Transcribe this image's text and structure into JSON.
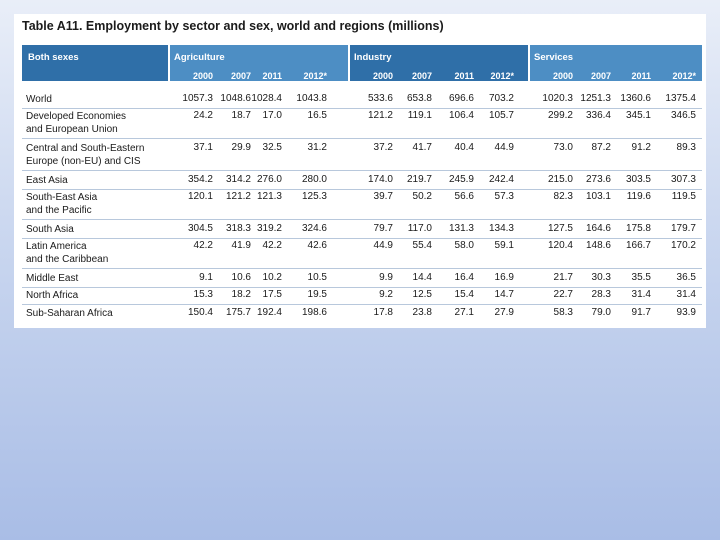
{
  "title": "Table A11.  Employment by sector and sex, world and regions (millions)",
  "header": {
    "row_label": "Both sexes",
    "sectors": [
      "Agriculture",
      "Industry",
      "Services"
    ],
    "years": [
      "2000",
      "2007",
      "2011",
      "2012*"
    ]
  },
  "rows": [
    {
      "label": [
        "World"
      ],
      "values": [
        "1057.3",
        "1048.6",
        "1028.4",
        "1043.8",
        "533.6",
        "653.8",
        "696.6",
        "703.2",
        "1020.3",
        "1251.3",
        "1360.6",
        "1375.4"
      ]
    },
    {
      "label": [
        "Developed Economies",
        "and European Union"
      ],
      "values": [
        "24.2",
        "18.7",
        "17.0",
        "16.5",
        "121.2",
        "119.1",
        "106.4",
        "105.7",
        "299.2",
        "336.4",
        "345.1",
        "346.5"
      ]
    },
    {
      "label": [
        "Central and South-Eastern",
        "Europe (non-EU) and CIS"
      ],
      "values": [
        "37.1",
        "29.9",
        "32.5",
        "31.2",
        "37.2",
        "41.7",
        "40.4",
        "44.9",
        "73.0",
        "87.2",
        "91.2",
        "89.3"
      ]
    },
    {
      "label": [
        "East Asia"
      ],
      "values": [
        "354.2",
        "314.2",
        "276.0",
        "280.0",
        "174.0",
        "219.7",
        "245.9",
        "242.4",
        "215.0",
        "273.6",
        "303.5",
        "307.3"
      ]
    },
    {
      "label": [
        "South-East Asia",
        "and the Pacific"
      ],
      "values": [
        "120.1",
        "121.2",
        "121.3",
        "125.3",
        "39.7",
        "50.2",
        "56.6",
        "57.3",
        "82.3",
        "103.1",
        "119.6",
        "119.5"
      ]
    },
    {
      "label": [
        "South Asia"
      ],
      "values": [
        "304.5",
        "318.3",
        "319.2",
        "324.6",
        "79.7",
        "117.0",
        "131.3",
        "134.3",
        "127.5",
        "164.6",
        "175.8",
        "179.7"
      ]
    },
    {
      "label": [
        "Latin America",
        "and the Caribbean"
      ],
      "values": [
        "42.2",
        "41.9",
        "42.2",
        "42.6",
        "44.9",
        "55.4",
        "58.0",
        "59.1",
        "120.4",
        "148.6",
        "166.7",
        "170.2"
      ]
    },
    {
      "label": [
        "Middle East"
      ],
      "values": [
        "9.1",
        "10.6",
        "10.2",
        "10.5",
        "9.9",
        "14.4",
        "16.4",
        "16.9",
        "21.7",
        "30.3",
        "35.5",
        "36.5"
      ]
    },
    {
      "label": [
        "North Africa"
      ],
      "values": [
        "15.3",
        "18.2",
        "17.5",
        "19.5",
        "9.2",
        "12.5",
        "15.4",
        "14.7",
        "22.7",
        "28.3",
        "31.4",
        "31.4"
      ]
    },
    {
      "label": [
        "Sub-Saharan Africa"
      ],
      "values": [
        "150.4",
        "175.7",
        "192.4",
        "198.6",
        "17.8",
        "23.8",
        "27.1",
        "27.9",
        "58.3",
        "79.0",
        "91.7",
        "93.9"
      ]
    }
  ]
}
